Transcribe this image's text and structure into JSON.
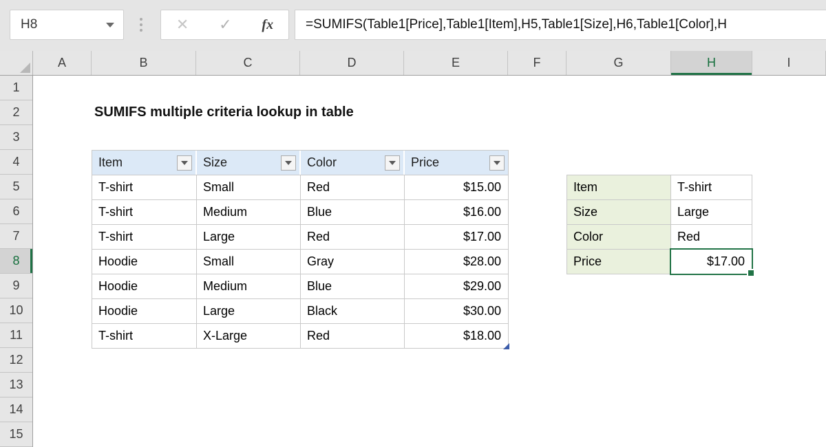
{
  "formula_bar": {
    "name_box": "H8",
    "cancel_icon": "✕",
    "enter_icon": "✓",
    "fx_icon": "fx",
    "formula": "=SUMIFS(Table1[Price],Table1[Item],H5,Table1[Size],H6,Table1[Color],H"
  },
  "grid": {
    "column_headers": [
      "A",
      "B",
      "C",
      "D",
      "E",
      "F",
      "G",
      "H",
      "I"
    ],
    "active_column": "H",
    "row_headers": [
      "1",
      "2",
      "3",
      "4",
      "5",
      "6",
      "7",
      "8",
      "9",
      "10",
      "11",
      "12",
      "13",
      "14",
      "15"
    ],
    "active_row": "8",
    "selected_cell": "H8"
  },
  "sheet": {
    "title": "SUMIFS multiple criteria lookup in table"
  },
  "table": {
    "columns": [
      "Item",
      "Size",
      "Color",
      "Price"
    ],
    "rows": [
      [
        "T-shirt",
        "Small",
        "Red",
        "$15.00"
      ],
      [
        "T-shirt",
        "Medium",
        "Blue",
        "$16.00"
      ],
      [
        "T-shirt",
        "Large",
        "Red",
        "$17.00"
      ],
      [
        "Hoodie",
        "Small",
        "Gray",
        "$28.00"
      ],
      [
        "Hoodie",
        "Medium",
        "Blue",
        "$29.00"
      ],
      [
        "Hoodie",
        "Large",
        "Black",
        "$30.00"
      ],
      [
        "T-shirt",
        "X-Large",
        "Red",
        "$18.00"
      ]
    ]
  },
  "lookup": {
    "rows": [
      {
        "label": "Item",
        "value": "T-shirt"
      },
      {
        "label": "Size",
        "value": "Large"
      },
      {
        "label": "Color",
        "value": "Red"
      },
      {
        "label": "Price",
        "value": "$17.00"
      }
    ]
  },
  "colors": {
    "selection_green": "#217346",
    "active_header_text": "#17703E",
    "table_header_blue": "#DCE9F7",
    "lookup_label_green": "#EAF1DD",
    "chrome_gray": "#E5E5E5"
  }
}
